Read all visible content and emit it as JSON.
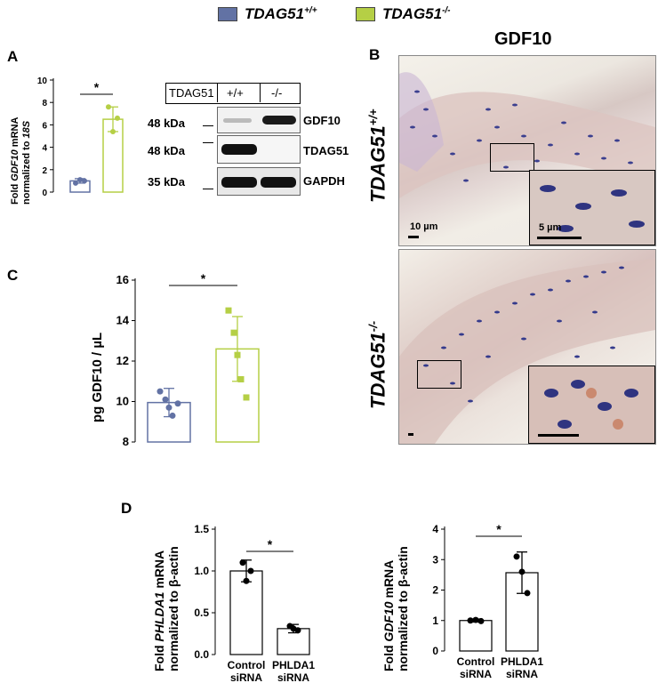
{
  "legend": {
    "items": [
      {
        "label": "TDAG51+/+",
        "color": "#6272a4"
      },
      {
        "label": "TDAG51-/-",
        "color": "#b5cf45"
      }
    ]
  },
  "panels": {
    "a": "A",
    "b": "B",
    "c": "C",
    "d": "D"
  },
  "panel_b": {
    "title": "GDF10",
    "row1_label": "TDAG51+/+",
    "row2_label": "TDAG51-/-",
    "scale_10": "10 µm",
    "scale_5": "5 µm"
  },
  "western": {
    "header": [
      "TDAG51",
      "+/+",
      "-/-"
    ],
    "bands": [
      {
        "kda": "48 kDa",
        "protein": "GDF10"
      },
      {
        "kda": "48 kDa",
        "protein": "TDAG51"
      },
      {
        "kda": "35 kDa",
        "protein": "GAPDH"
      }
    ]
  },
  "chart_data": [
    {
      "type": "bar",
      "panel": "A",
      "ylabel": "Fold GDF10 mRNA normalized to 18S",
      "ylim": [
        0,
        10
      ],
      "yticks": [
        0,
        2,
        4,
        6,
        8,
        10
      ],
      "categories": [
        "TDAG51+/+",
        "TDAG51-/-"
      ],
      "values": [
        1.0,
        6.5
      ],
      "error": [
        0.2,
        1.1
      ],
      "points": [
        [
          0.8,
          1.1,
          1.0
        ],
        [
          7.6,
          5.4,
          6.6
        ]
      ],
      "significance": "*"
    },
    {
      "type": "bar",
      "panel": "C",
      "ylabel": "pg GDF10 / µL",
      "ylim": [
        8,
        16
      ],
      "yticks": [
        8,
        10,
        12,
        14,
        16
      ],
      "categories": [
        "TDAG51+/+",
        "TDAG51-/-"
      ],
      "values": [
        9.95,
        12.6
      ],
      "error": [
        0.7,
        1.6
      ],
      "points": [
        [
          10.5,
          10.1,
          9.7,
          9.3,
          9.9
        ],
        [
          14.5,
          13.4,
          12.3,
          11.1,
          10.2
        ]
      ],
      "significance": "*"
    },
    {
      "type": "bar",
      "panel": "D-left",
      "ylabel": "Fold PHLDA1 mRNA normalized to β-actin",
      "ylim": [
        0,
        1.5
      ],
      "yticks": [
        "0.0",
        "0.5",
        "1.0",
        "1.5"
      ],
      "categories": [
        "Control siRNA",
        "PHLDA1 siRNA"
      ],
      "values": [
        1.0,
        0.31
      ],
      "error": [
        0.13,
        0.05
      ],
      "points": [
        [
          1.1,
          0.88,
          1.0
        ],
        [
          0.34,
          0.31,
          0.29
        ]
      ],
      "significance": "*"
    },
    {
      "type": "bar",
      "panel": "D-right",
      "ylabel": "Fold GDF10 mRNA normalized to β-actin",
      "ylim": [
        0,
        4
      ],
      "yticks": [
        0,
        1,
        2,
        3,
        4
      ],
      "categories": [
        "Control siRNA",
        "PHLDA1 siRNA"
      ],
      "values": [
        1.0,
        2.57
      ],
      "error": [
        0.05,
        0.68
      ],
      "points": [
        [
          1.0,
          1.02,
          0.98
        ],
        [
          3.1,
          2.6,
          1.9
        ]
      ],
      "significance": "*"
    }
  ]
}
